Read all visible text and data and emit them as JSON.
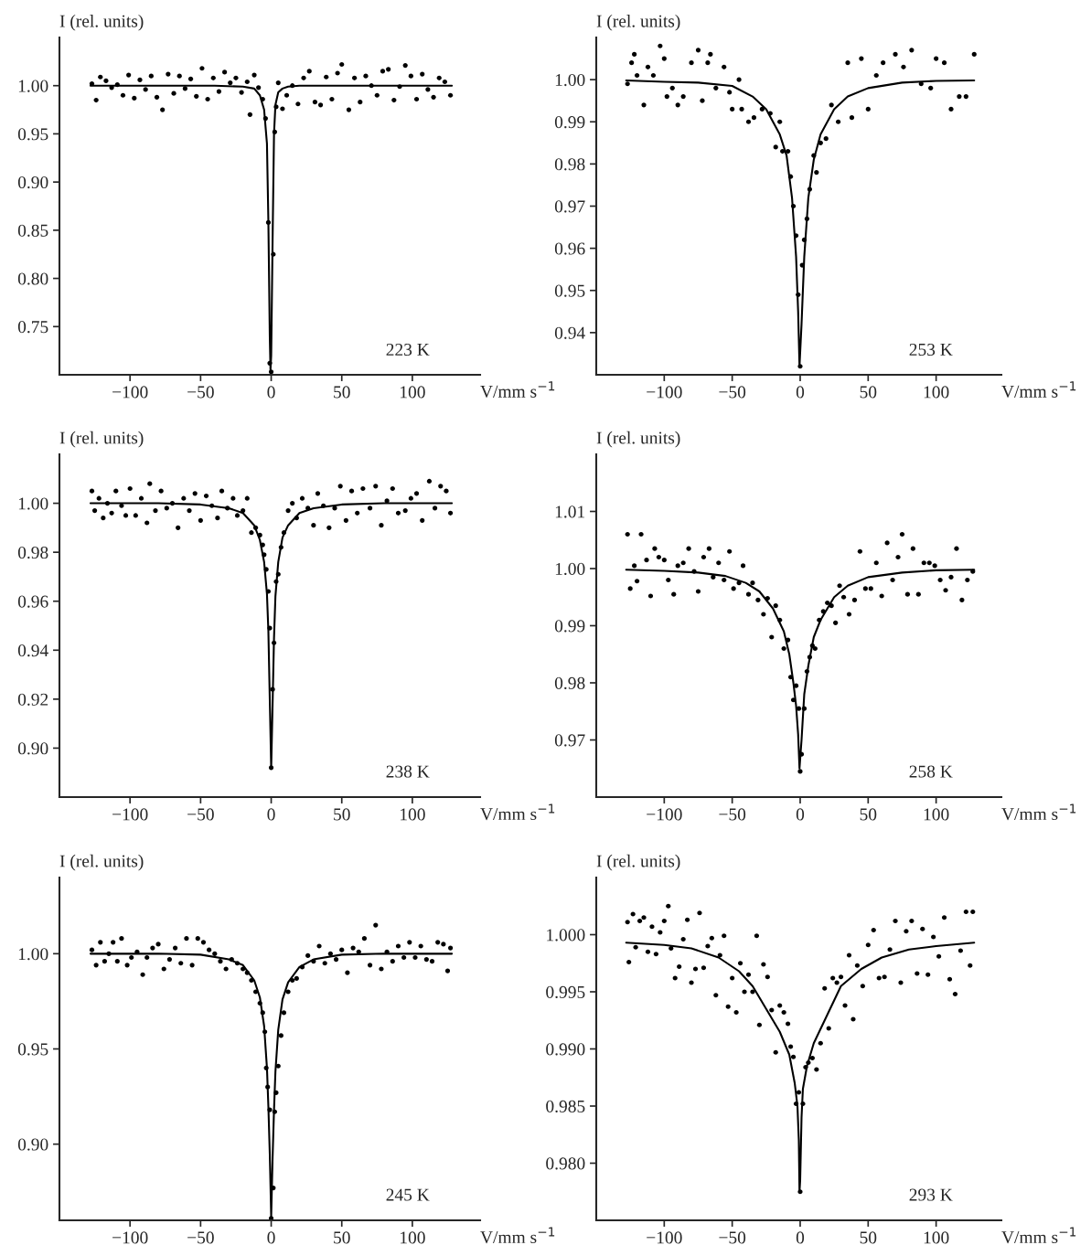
{
  "chart_data": [
    {
      "type": "scatter",
      "ylabel": "I (rel. units)",
      "xlabel": "V/mm s$^{−1}$",
      "annotations": [
        "223 K"
      ],
      "grid": false,
      "xlim": [
        -150,
        148
      ],
      "ylim": [
        0.7,
        1.05
      ],
      "xticks": [
        -100,
        -50,
        0,
        50,
        100
      ],
      "yticks": [
        {
          "value": 0.75,
          "label": "0.75"
        },
        {
          "value": 0.8,
          "label": "0.80"
        },
        {
          "value": 0.85,
          "label": "0.85"
        },
        {
          "value": 0.9,
          "label": "0.90"
        },
        {
          "value": 0.95,
          "label": "0.95"
        },
        {
          "value": 1.0,
          "label": "1.00"
        }
      ],
      "series": [
        {
          "marker": "circle",
          "color": "#000000",
          "x": [
            -127,
            -124,
            -121,
            -117,
            -113,
            -109,
            -105,
            -101,
            -97,
            -93,
            -89,
            -85,
            -81,
            -77,
            -73,
            -69,
            -65,
            -61,
            -57,
            -53,
            -49,
            -45,
            -41,
            -37,
            -33,
            -29,
            -25,
            -21,
            -17,
            -15,
            -12,
            -9,
            -6,
            -4,
            -2,
            -1,
            0,
            1.5,
            2.5,
            3.5,
            5,
            8,
            11,
            15,
            19,
            23,
            27,
            31,
            35,
            39,
            43,
            47,
            50,
            55,
            59,
            63,
            67,
            71,
            75,
            79,
            83,
            87,
            91,
            95,
            99,
            103,
            107,
            111,
            115,
            119,
            123,
            127
          ],
          "values": [
            1.002,
            0.985,
            1.009,
            1.005,
            0.998,
            1.001,
            0.99,
            1.011,
            0.987,
            1.006,
            0.996,
            1.01,
            0.988,
            0.975,
            1.012,
            0.992,
            1.01,
            0.997,
            1.007,
            0.989,
            1.018,
            0.986,
            1.008,
            0.994,
            1.014,
            1.003,
            1.008,
            0.993,
            1.004,
            0.97,
            1.011,
            0.998,
            0.986,
            0.966,
            0.858,
            0.712,
            0.703,
            0.825,
            0.952,
            0.978,
            1.003,
            0.976,
            0.99,
            1.0,
            0.981,
            1.008,
            1.015,
            0.983,
            0.98,
            1.009,
            0.986,
            1.013,
            1.022,
            0.975,
            1.008,
            0.983,
            1.01,
            1.0,
            0.99,
            1.015,
            1.017,
            0.985,
            0.999,
            1.021,
            1.01,
            0.986,
            1.012,
            0.996,
            0.988,
            1.008,
            1.004,
            0.99
          ]
        },
        {
          "type": "line",
          "color": "#000000",
          "line_style": "solid",
          "x": [
            -128,
            -40,
            -20,
            -12,
            -8,
            -5,
            -3,
            -2,
            -1,
            -0.5,
            0,
            1,
            2,
            3,
            5,
            8,
            12,
            20,
            40,
            128
          ],
          "values": [
            1.0,
            1.0,
            0.999,
            0.997,
            0.99,
            0.975,
            0.94,
            0.86,
            0.74,
            0.705,
            0.72,
            0.84,
            0.95,
            0.98,
            0.993,
            0.997,
            0.999,
            1.0,
            1.0,
            1.0
          ]
        }
      ]
    },
    {
      "type": "scatter",
      "ylabel": "I (rel. units)",
      "xlabel": "V/mm s$^{−1}$",
      "annotations": [
        "253 K"
      ],
      "grid": false,
      "xlim": [
        -150,
        148
      ],
      "ylim": [
        0.93,
        1.01
      ],
      "xticks": [
        -100,
        -50,
        0,
        50,
        100
      ],
      "yticks": [
        0.94,
        0.95,
        0.96,
        0.97,
        0.98,
        0.99,
        {
          "value": 1.0,
          "label": "1.00"
        }
      ],
      "series": [
        {
          "marker": "circle",
          "color": "#000000",
          "x": [
            -127,
            -124,
            -122,
            -120,
            -115,
            -112,
            -108,
            -103,
            -100,
            -98,
            -94,
            -90,
            -86,
            -80,
            -75,
            -72,
            -68,
            -66,
            -62,
            -56,
            -52,
            -50,
            -45,
            -43,
            -38,
            -34,
            -28,
            -22,
            -18,
            -15,
            -13,
            -9,
            -7,
            -5,
            -3,
            -1.5,
            0,
            1.5,
            3,
            5,
            7,
            10,
            12,
            15,
            19,
            23,
            28,
            35,
            38,
            45,
            50,
            56,
            61,
            70,
            76,
            82,
            89,
            96,
            100,
            106,
            111,
            117,
            122,
            128
          ],
          "values": [
            0.999,
            1.004,
            1.006,
            1.001,
            0.994,
            1.003,
            1.001,
            1.008,
            1.005,
            0.996,
            0.998,
            0.994,
            0.996,
            1.004,
            1.007,
            0.995,
            1.004,
            1.006,
            0.998,
            1.003,
            0.997,
            0.993,
            1.0,
            0.993,
            0.99,
            0.991,
            0.993,
            0.992,
            0.984,
            0.99,
            0.983,
            0.983,
            0.977,
            0.97,
            0.963,
            0.949,
            0.932,
            0.956,
            0.962,
            0.967,
            0.974,
            0.982,
            0.978,
            0.985,
            0.986,
            0.994,
            0.99,
            1.004,
            0.991,
            1.005,
            0.993,
            1.001,
            1.004,
            1.006,
            1.003,
            1.007,
            0.999,
            0.998,
            1.005,
            1.004,
            0.993,
            0.996,
            0.996,
            1.006
          ]
        },
        {
          "type": "line",
          "color": "#000000",
          "line_style": "solid",
          "x": [
            -128,
            -100,
            -75,
            -50,
            -35,
            -25,
            -15,
            -10,
            -6,
            -3,
            -1.5,
            -0.5,
            1,
            3,
            6,
            10,
            15,
            25,
            35,
            50,
            75,
            100,
            128
          ],
          "values": [
            0.9998,
            0.9995,
            0.9993,
            0.9985,
            0.996,
            0.993,
            0.987,
            0.982,
            0.972,
            0.958,
            0.945,
            0.932,
            0.942,
            0.958,
            0.972,
            0.981,
            0.987,
            0.993,
            0.996,
            0.998,
            0.9993,
            0.9997,
            0.9998
          ]
        }
      ]
    },
    {
      "type": "scatter",
      "ylabel": "I (rel. units)",
      "xlabel": "V/mm s$^{−1}$",
      "annotations": [
        "238 K"
      ],
      "grid": false,
      "xlim": [
        -150,
        148
      ],
      "ylim": [
        0.88,
        1.02
      ],
      "xticks": [
        -100,
        -50,
        0,
        50,
        100
      ],
      "yticks": [
        {
          "value": 0.9,
          "label": "0.90"
        },
        0.92,
        0.94,
        0.96,
        0.98,
        {
          "value": 1.0,
          "label": "1.00"
        }
      ],
      "series": [
        {
          "marker": "circle",
          "color": "#000000",
          "x": [
            -127,
            -125,
            -122,
            -119,
            -116,
            -113,
            -110,
            -106,
            -103,
            -100,
            -96,
            -92,
            -88,
            -86,
            -82,
            -78,
            -74,
            -70,
            -66,
            -62,
            -58,
            -54,
            -50,
            -46,
            -42,
            -38,
            -35,
            -31,
            -27,
            -24,
            -20,
            -17,
            -14,
            -11,
            -8,
            -6,
            -5,
            -3.5,
            -2,
            -1,
            0,
            1,
            2,
            3.5,
            5,
            7,
            9,
            12,
            15,
            18,
            22,
            26,
            30,
            33,
            37,
            41,
            45,
            49,
            53,
            57,
            61,
            65,
            70,
            74,
            78,
            82,
            86,
            90,
            95,
            99,
            103,
            107,
            112,
            116,
            120,
            124,
            127
          ],
          "values": [
            1.005,
            0.997,
            1.002,
            0.994,
            1.0,
            0.996,
            1.005,
            0.999,
            0.995,
            1.006,
            0.995,
            1.002,
            0.992,
            1.008,
            0.997,
            1.005,
            0.998,
            1.0,
            0.99,
            1.002,
            0.997,
            1.004,
            0.993,
            1.003,
            0.999,
            0.994,
            1.005,
            0.998,
            1.002,
            0.995,
            0.997,
            1.002,
            0.988,
            0.99,
            0.987,
            0.983,
            0.979,
            0.973,
            0.964,
            0.949,
            0.892,
            0.924,
            0.943,
            0.968,
            0.971,
            0.982,
            0.988,
            0.997,
            1.0,
            0.994,
            1.002,
            0.998,
            0.991,
            1.004,
            0.999,
            0.99,
            0.998,
            1.007,
            0.993,
            1.005,
            0.996,
            1.006,
            0.998,
            1.007,
            0.991,
            1.001,
            1.006,
            0.996,
            0.997,
            1.002,
            1.004,
            0.993,
            1.009,
            0.998,
            1.007,
            1.005,
            0.996
          ]
        },
        {
          "type": "line",
          "color": "#000000",
          "line_style": "solid",
          "x": [
            -128,
            -80,
            -50,
            -30,
            -20,
            -12,
            -8,
            -5,
            -3,
            -2,
            -1,
            0,
            1,
            2,
            3,
            5,
            8,
            12,
            20,
            30,
            50,
            80,
            128
          ],
          "values": [
            1.0,
            1.0,
            0.9995,
            0.998,
            0.996,
            0.991,
            0.985,
            0.976,
            0.963,
            0.948,
            0.92,
            0.892,
            0.918,
            0.945,
            0.962,
            0.976,
            0.986,
            0.991,
            0.996,
            0.998,
            0.9995,
            1.0,
            1.0
          ]
        }
      ]
    },
    {
      "type": "scatter",
      "ylabel": "I (rel. units)",
      "xlabel": "V/mm s$^{−1}$",
      "annotations": [
        "258 K"
      ],
      "grid": false,
      "xlim": [
        -150,
        148
      ],
      "ylim": [
        0.96,
        1.02
      ],
      "xticks": [
        -100,
        -50,
        0,
        50,
        100
      ],
      "yticks": [
        0.97,
        0.98,
        0.99,
        {
          "value": 1.0,
          "label": "1.00"
        },
        1.01
      ],
      "series": [
        {
          "marker": "circle",
          "color": "#000000",
          "x": [
            -127,
            -125,
            -122,
            -120,
            -117,
            -113,
            -110,
            -107,
            -104,
            -100,
            -97,
            -93,
            -90,
            -86,
            -82,
            -78,
            -75,
            -71,
            -67,
            -64,
            -60,
            -56,
            -52,
            -49,
            -45,
            -42,
            -38,
            -35,
            -31,
            -27,
            -24,
            -21,
            -18,
            -15,
            -12,
            -9,
            -7,
            -5,
            -3,
            -1,
            0,
            1,
            3,
            5,
            7,
            9,
            11,
            14,
            17,
            20,
            23,
            26,
            29,
            32,
            36,
            40,
            44,
            48,
            52,
            56,
            60,
            64,
            68,
            72,
            75,
            79,
            83,
            87,
            91,
            95,
            99,
            103,
            107,
            111,
            115,
            119,
            123,
            127
          ],
          "values": [
            1.006,
            0.9965,
            1.0005,
            0.9978,
            1.006,
            1.0015,
            0.9952,
            1.0035,
            1.002,
            1.0015,
            0.998,
            0.9955,
            1.0005,
            1.001,
            1.0035,
            0.9995,
            0.996,
            1.002,
            1.0035,
            0.9985,
            1.001,
            0.998,
            1.003,
            0.9965,
            0.9975,
            1.0005,
            0.9955,
            0.9975,
            0.9945,
            0.992,
            0.9948,
            0.988,
            0.9935,
            0.991,
            0.986,
            0.9875,
            0.981,
            0.977,
            0.9795,
            0.9755,
            0.9645,
            0.9675,
            0.9755,
            0.982,
            0.9845,
            0.9865,
            0.986,
            0.991,
            0.9925,
            0.994,
            0.9935,
            0.9905,
            0.997,
            0.995,
            0.992,
            0.9945,
            1.003,
            0.9965,
            0.9965,
            1.001,
            0.9952,
            1.0045,
            0.998,
            1.002,
            1.006,
            0.9955,
            1.0035,
            0.9955,
            1.001,
            1.001,
            1.0005,
            0.998,
            0.9962,
            0.9985,
            1.0035,
            0.9945,
            0.998,
            0.9995
          ]
        },
        {
          "type": "line",
          "color": "#000000",
          "line_style": "solid",
          "x": [
            -128,
            -100,
            -75,
            -55,
            -40,
            -30,
            -20,
            -12,
            -8,
            -5,
            -3,
            -1.5,
            -0.5,
            1,
            3,
            6,
            10,
            15,
            25,
            35,
            50,
            75,
            100,
            128
          ],
          "values": [
            0.9998,
            0.9996,
            0.9993,
            0.9987,
            0.9975,
            0.996,
            0.993,
            0.989,
            0.985,
            0.98,
            0.976,
            0.971,
            0.965,
            0.97,
            0.978,
            0.983,
            0.988,
            0.991,
            0.995,
            0.997,
            0.9985,
            0.9993,
            0.9997,
            0.9998
          ]
        }
      ]
    },
    {
      "type": "scatter",
      "ylabel": "I (rel. units)",
      "xlabel": "V/mm s$^{−1}$",
      "annotations": [
        "245 K"
      ],
      "grid": false,
      "xlim": [
        -150,
        148
      ],
      "ylim": [
        0.86,
        1.04
      ],
      "xticks": [
        -100,
        -50,
        0,
        50,
        100
      ],
      "yticks": [
        {
          "value": 0.9,
          "label": "0.90"
        },
        0.95,
        {
          "value": 1.0,
          "label": "1.00"
        }
      ],
      "series": [
        {
          "marker": "circle",
          "color": "#000000",
          "x": [
            -127,
            -124,
            -121,
            -118,
            -115,
            -112,
            -109,
            -106,
            -102,
            -99,
            -95,
            -91,
            -88,
            -84,
            -80,
            -76,
            -72,
            -68,
            -64,
            -60,
            -56,
            -52,
            -48,
            -44,
            -40,
            -36,
            -32,
            -28,
            -24,
            -20,
            -17,
            -14,
            -11,
            -8,
            -6,
            -4.5,
            -3.5,
            -2.5,
            -1,
            0,
            1.5,
            2.5,
            3.5,
            5,
            7,
            9,
            12,
            15,
            18,
            22,
            26,
            30,
            34,
            38,
            42,
            46,
            50,
            54,
            58,
            62,
            66,
            70,
            74,
            78,
            82,
            86,
            90,
            94,
            98,
            102,
            106,
            110,
            114,
            118,
            122,
            125,
            127
          ],
          "values": [
            1.002,
            0.994,
            1.006,
            0.996,
            1.0,
            1.006,
            0.996,
            1.008,
            0.994,
            0.998,
            1.001,
            0.989,
            0.998,
            1.003,
            1.005,
            0.992,
            0.997,
            1.003,
            0.995,
            1.008,
            0.994,
            1.008,
            1.006,
            1.002,
            1.0,
            0.996,
            0.992,
            0.997,
            0.995,
            0.992,
            0.99,
            0.986,
            0.98,
            0.974,
            0.969,
            0.959,
            0.94,
            0.93,
            0.918,
            0.861,
            0.877,
            0.917,
            0.927,
            0.941,
            0.957,
            0.969,
            0.98,
            0.986,
            0.987,
            0.993,
            0.999,
            0.996,
            1.004,
            0.995,
            1.0,
            0.997,
            1.002,
            0.99,
            1.003,
            1.001,
            1.008,
            0.994,
            1.015,
            0.992,
            1.001,
            0.996,
            1.004,
            0.998,
            1.006,
            0.998,
            1.004,
            0.997,
            0.996,
            1.006,
            1.005,
            0.991,
            1.003
          ]
        },
        {
          "type": "line",
          "color": "#000000",
          "line_style": "solid",
          "x": [
            -128,
            -80,
            -50,
            -30,
            -20,
            -12,
            -8,
            -5,
            -3,
            -2,
            -1,
            0,
            1,
            2,
            3,
            5,
            8,
            12,
            20,
            30,
            50,
            80,
            128
          ],
          "values": [
            1.0,
            1.0,
            0.9995,
            0.997,
            0.994,
            0.986,
            0.977,
            0.962,
            0.94,
            0.92,
            0.895,
            0.862,
            0.893,
            0.918,
            0.938,
            0.96,
            0.976,
            0.985,
            0.993,
            0.997,
            0.9995,
            1.0,
            1.0
          ]
        }
      ]
    },
    {
      "type": "scatter",
      "ylabel": "I (rel. units)",
      "xlabel": "V/mm s$^{−1}$",
      "annotations": [
        "293 K"
      ],
      "grid": false,
      "xlim": [
        -150,
        148
      ],
      "ylim": [
        0.975,
        1.005
      ],
      "xticks": [
        -100,
        -50,
        0,
        50,
        100
      ],
      "yticks": [
        {
          "value": 0.98,
          "label": "0.980"
        },
        0.985,
        {
          "value": 0.99,
          "label": "0.990"
        },
        0.995,
        {
          "value": 1.0,
          "label": "1.000"
        }
      ],
      "series": [
        {
          "marker": "circle",
          "color": "#000000",
          "x": [
            -127,
            -126,
            -123,
            -121,
            -118,
            -115,
            -112,
            -109,
            -106,
            -103,
            -100,
            -97,
            -95,
            -92,
            -89,
            -86,
            -83,
            -80,
            -77,
            -74,
            -71,
            -68,
            -65,
            -62,
            -59,
            -56,
            -53,
            -50,
            -47,
            -44,
            -41,
            -38,
            -35,
            -32,
            -30,
            -27,
            -24,
            -21,
            -18,
            -15,
            -12,
            -9,
            -7,
            -5,
            -3,
            -1,
            0,
            2,
            4,
            6,
            9,
            12,
            15,
            18,
            21,
            24,
            27,
            30,
            33,
            36,
            39,
            42,
            46,
            50,
            54,
            58,
            62,
            66,
            70,
            74,
            78,
            82,
            86,
            90,
            94,
            98,
            102,
            106,
            110,
            114,
            118,
            122,
            125,
            127
          ],
          "values": [
            1.0011,
            0.9976,
            1.0018,
            0.9989,
            1.0012,
            1.0015,
            0.9985,
            1.0007,
            0.9983,
            1.0002,
            1.0012,
            1.0025,
            0.9988,
            0.9962,
            0.9972,
            0.9996,
            1.0013,
            0.9958,
            0.997,
            1.0019,
            0.9971,
            0.999,
            0.9997,
            0.9947,
            0.9982,
            0.9999,
            0.9937,
            0.9962,
            0.9932,
            0.9975,
            0.995,
            0.9965,
            0.995,
            0.9999,
            0.9921,
            0.9974,
            0.9963,
            0.9934,
            0.9897,
            0.9938,
            0.9932,
            0.9922,
            0.9902,
            0.9893,
            0.9852,
            0.9862,
            0.9775,
            0.9852,
            0.9884,
            0.9888,
            0.9892,
            0.9882,
            0.9905,
            0.9953,
            0.9918,
            0.9962,
            0.9958,
            0.9963,
            0.9938,
            0.9982,
            0.9926,
            0.9973,
            0.9955,
            0.9991,
            1.0004,
            0.9962,
            0.9963,
            0.9987,
            1.0012,
            0.9958,
            1.0003,
            1.0012,
            0.9966,
            1.0005,
            0.9965,
            0.9998,
            0.9981,
            1.0015,
            0.9961,
            0.9948,
            0.9986,
            1.002,
            0.9973,
            1.002
          ]
        },
        {
          "type": "line",
          "color": "#000000",
          "line_style": "solid",
          "x": [
            -128,
            -100,
            -80,
            -60,
            -45,
            -35,
            -25,
            -15,
            -8,
            -4,
            -2,
            -1,
            -0.5,
            0,
            1,
            2,
            5,
            10,
            20,
            30,
            45,
            60,
            80,
            100,
            128
          ],
          "values": [
            0.9993,
            0.9991,
            0.9988,
            0.998,
            0.9968,
            0.9955,
            0.9935,
            0.9915,
            0.9895,
            0.987,
            0.985,
            0.982,
            0.9775,
            0.9785,
            0.984,
            0.9865,
            0.9885,
            0.9905,
            0.993,
            0.9955,
            0.997,
            0.998,
            0.9987,
            0.999,
            0.9993
          ]
        }
      ]
    }
  ]
}
